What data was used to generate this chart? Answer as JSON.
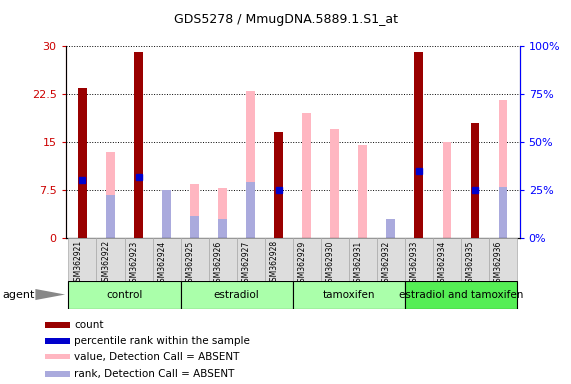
{
  "title": "GDS5278 / MmugDNA.5889.1.S1_at",
  "samples": [
    "GSM362921",
    "GSM362922",
    "GSM362923",
    "GSM362924",
    "GSM362925",
    "GSM362926",
    "GSM362927",
    "GSM362928",
    "GSM362929",
    "GSM362930",
    "GSM362931",
    "GSM362932",
    "GSM362933",
    "GSM362934",
    "GSM362935",
    "GSM362936"
  ],
  "count_values": [
    23.5,
    null,
    29.0,
    null,
    null,
    null,
    null,
    16.5,
    null,
    null,
    null,
    null,
    29.0,
    null,
    18.0,
    null
  ],
  "count_color": "#990000",
  "percentile_values": [
    9.0,
    null,
    9.5,
    null,
    null,
    null,
    null,
    7.5,
    null,
    null,
    null,
    null,
    10.5,
    null,
    7.5,
    null
  ],
  "percentile_color": "#0000CC",
  "absent_value_values": [
    null,
    13.5,
    null,
    null,
    8.5,
    7.8,
    23.0,
    null,
    19.5,
    17.0,
    14.5,
    null,
    null,
    15.0,
    null,
    21.5
  ],
  "absent_value_color": "#FFB6C1",
  "absent_rank_values": [
    null,
    6.8,
    null,
    7.5,
    3.5,
    3.0,
    8.8,
    null,
    null,
    null,
    null,
    3.0,
    null,
    null,
    null,
    8.0
  ],
  "absent_rank_color": "#AAAADD",
  "groups": [
    {
      "label": "control",
      "start": 0,
      "end": 3,
      "color": "#AAFFAA"
    },
    {
      "label": "estradiol",
      "start": 4,
      "end": 7,
      "color": "#AAFFAA"
    },
    {
      "label": "tamoxifen",
      "start": 8,
      "end": 11,
      "color": "#AAFFAA"
    },
    {
      "label": "estradiol and tamoxifen",
      "start": 12,
      "end": 15,
      "color": "#55EE55"
    }
  ],
  "ylim_left": [
    0,
    30
  ],
  "ylim_right": [
    0,
    100
  ],
  "yticks_left": [
    0,
    7.5,
    15,
    22.5,
    30
  ],
  "yticks_right": [
    0,
    25,
    50,
    75,
    100
  ],
  "ytick_labels_left": [
    "0",
    "7.5",
    "15",
    "22.5",
    "30"
  ],
  "ytick_labels_right": [
    "0%",
    "25%",
    "50%",
    "75%",
    "100%"
  ],
  "bar_width": 0.55,
  "agent_label": "agent",
  "legend_items": [
    {
      "label": "count",
      "color": "#990000"
    },
    {
      "label": "percentile rank within the sample",
      "color": "#0000CC"
    },
    {
      "label": "value, Detection Call = ABSENT",
      "color": "#FFB6C1"
    },
    {
      "label": "rank, Detection Call = ABSENT",
      "color": "#AAAADD"
    }
  ]
}
